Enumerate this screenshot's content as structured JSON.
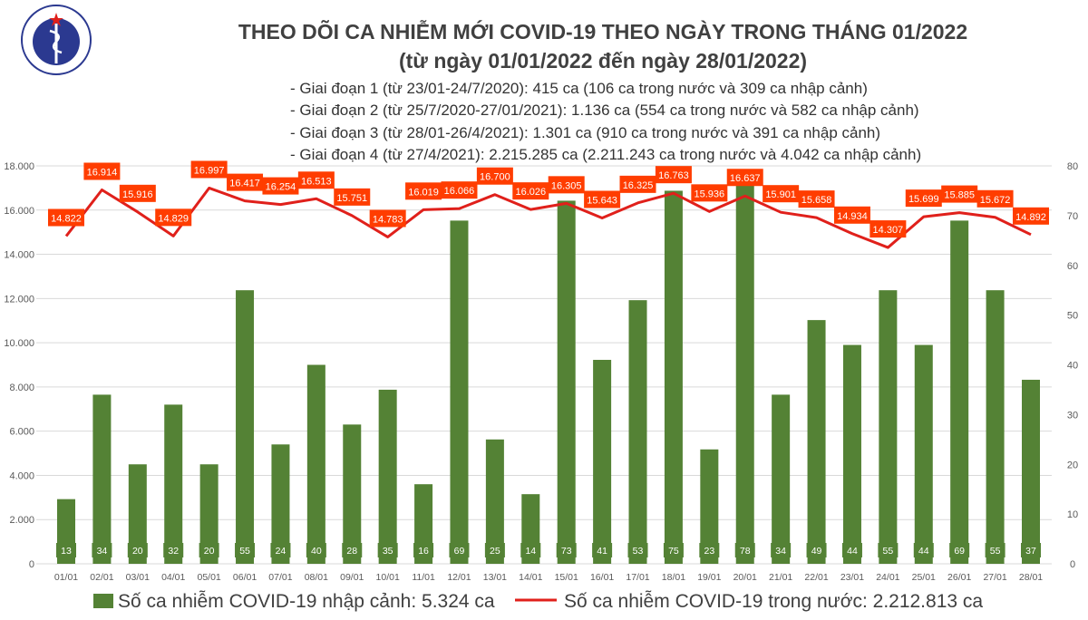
{
  "header": {
    "logo_text_top": "BỘ Y TẾ",
    "logo_text_bottom": "MINISTRY OF HEALTH",
    "title_line1": "THEO DÕI CA NHIỄM MỚI COVID-19 THEO NGÀY TRONG THÁNG 01/2022",
    "title_line2": "(từ ngày 01/01/2022 đến ngày 28/01/2022)",
    "stages": [
      "- Giai đoạn 1 (từ 23/01-24/7/2020): 415 ca (106 ca trong nước và 309 ca nhập cảnh)",
      "- Giai đoạn 2 (từ 25/7/2020-27/01/2021): 1.136 ca (554 ca trong nước và 582 ca nhập cảnh)",
      "- Giai đoạn 3 (từ 28/01-26/4/2021): 1.301 ca (910 ca trong nước và 391 ca nhập cảnh)",
      "- Giai đoạn 4 (từ 27/4/2021): 2.215.285 ca (2.211.243 ca trong nước và 4.042 ca nhập cảnh)"
    ]
  },
  "chart_data": {
    "type": "bar+line",
    "categories": [
      "01/01",
      "02/01",
      "03/01",
      "04/01",
      "05/01",
      "06/01",
      "07/01",
      "08/01",
      "09/01",
      "10/01",
      "11/01",
      "12/01",
      "13/01",
      "14/01",
      "15/01",
      "16/01",
      "17/01",
      "18/01",
      "19/01",
      "20/01",
      "21/01",
      "22/01",
      "23/01",
      "24/01",
      "25/01",
      "26/01",
      "27/01",
      "28/01"
    ],
    "series": [
      {
        "name": "Số ca nhiễm COVID-19 nhập cảnh: 5.324 ca",
        "type": "bar",
        "axis": "right",
        "color": "#548235",
        "values": [
          13,
          34,
          20,
          32,
          20,
          55,
          24,
          40,
          28,
          35,
          16,
          69,
          25,
          14,
          73,
          41,
          53,
          75,
          23,
          78,
          34,
          49,
          44,
          55,
          44,
          69,
          55,
          37
        ]
      },
      {
        "name": "Số ca nhiễm COVID-19 trong nước: 2.212.813 ca",
        "type": "line",
        "axis": "left",
        "color": "#e0201b",
        "values": [
          14822,
          16914,
          15916,
          14829,
          16997,
          16417,
          16254,
          16513,
          15751,
          14783,
          16019,
          16066,
          16700,
          16026,
          16305,
          15643,
          16325,
          16763,
          15936,
          16637,
          15901,
          15658,
          14934,
          14307,
          15699,
          15885,
          15672,
          14892
        ],
        "labels": [
          "14.822",
          "16.914",
          "15.916",
          "14.829",
          "16.997",
          "16.417",
          "16.254",
          "16.513",
          "15.751",
          "14.783",
          "16.019",
          "16.066",
          "16.700",
          "16.026",
          "16.305",
          "15.643",
          "16.325",
          "16.763",
          "15.936",
          "16.637",
          "15.901",
          "15.658",
          "14.934",
          "14.307",
          "15.699",
          "15.885",
          "15.672",
          "14.892"
        ]
      }
    ],
    "left_axis": {
      "range": [
        0,
        18000
      ],
      "ticks": [
        "0",
        "2.000",
        "4.000",
        "6.000",
        "8.000",
        "10.000",
        "12.000",
        "14.000",
        "16.000",
        "18.000"
      ]
    },
    "right_axis": {
      "range": [
        0,
        80
      ],
      "ticks": [
        "0",
        "10",
        "20",
        "30",
        "40",
        "50",
        "60",
        "70",
        "80"
      ]
    },
    "grid": true,
    "legend": "bottom",
    "label_bg_color": "#ff3d00"
  }
}
